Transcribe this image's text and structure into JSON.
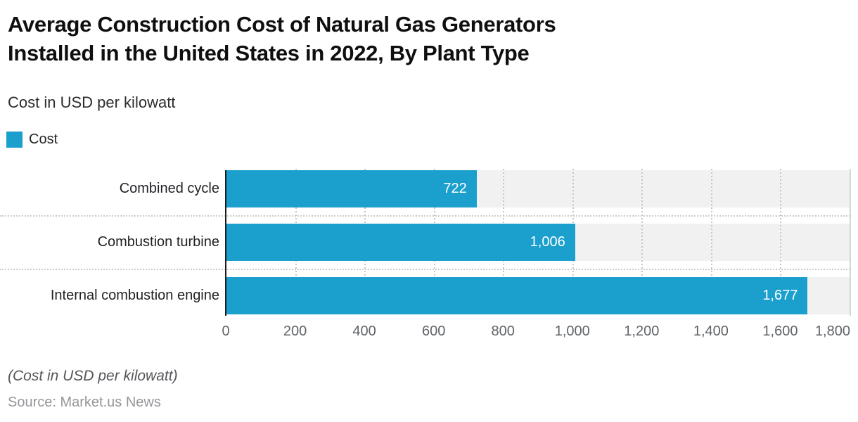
{
  "header": {
    "title_lines": [
      "Average Construction Cost of Natural Gas Generators",
      "Installed in the United States in 2022, By Plant Type"
    ],
    "subtitle": "Cost in USD per kilowatt"
  },
  "legend": {
    "label": "Cost"
  },
  "footer": {
    "note": "(Cost in USD per kilowatt)",
    "source": "Source: Market.us News"
  },
  "chart_data": {
    "type": "bar",
    "orientation": "horizontal",
    "title": "Average Construction Cost of Natural Gas Generators Installed in the United States in 2022, By Plant Type",
    "subtitle": "Cost in USD per kilowatt",
    "categories": [
      "Combined cycle",
      "Combustion turbine",
      "Internal combustion engine"
    ],
    "series": [
      {
        "name": "Cost",
        "values": [
          722,
          1006,
          1677
        ]
      }
    ],
    "value_labels": [
      "722",
      "1,006",
      "1,677"
    ],
    "xlim": [
      0,
      1800
    ],
    "xticks": [
      0,
      200,
      400,
      600,
      800,
      1000,
      1200,
      1400,
      1600,
      1800
    ],
    "xtick_labels": [
      "0",
      "200",
      "400",
      "600",
      "800",
      "1,000",
      "1,200",
      "1,400",
      "1,600",
      "1,800"
    ],
    "grid": true,
    "legend_position": "top-left",
    "colors": {
      "bar": "#1B9FCD",
      "row_band": "#f1f1f2",
      "gridline": "#c6c6c8",
      "axis_line": "#1c1c1c",
      "separator": "#cbcbcb",
      "value_label": "#ffffff"
    }
  }
}
